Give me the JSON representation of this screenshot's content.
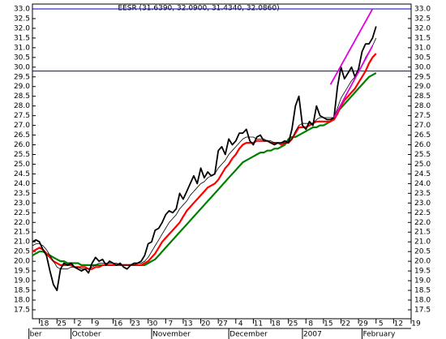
{
  "chart_data": {
    "type": "line",
    "title": "EESR (31.6390, 32.0900, 31.4340, 32.0860)",
    "x": [
      0,
      1,
      2,
      3,
      4,
      5,
      6,
      7,
      8,
      9,
      10,
      11,
      12,
      13,
      14,
      15,
      16,
      17,
      18,
      19,
      20,
      21,
      22,
      23,
      24,
      25,
      26,
      27,
      28,
      29,
      30,
      31,
      32,
      33,
      34,
      35,
      36,
      37,
      38,
      39,
      40,
      41,
      42,
      43,
      44,
      45,
      46,
      47,
      48,
      49,
      50,
      51,
      52,
      53,
      54,
      55,
      56,
      57,
      58,
      59,
      60,
      61,
      62,
      63,
      64,
      65,
      66,
      67,
      68,
      69,
      70,
      71,
      72,
      73,
      74,
      75,
      76,
      77,
      78,
      79,
      80,
      81,
      82,
      83,
      84,
      85,
      86,
      87,
      88,
      89,
      90,
      91,
      92,
      93,
      94,
      95,
      96,
      97,
      98
    ],
    "series": [
      {
        "color": "#008000",
        "width": 2.2,
        "values": [
          20.3,
          20.4,
          20.5,
          20.5,
          20.4,
          20.3,
          20.2,
          20.1,
          20.0,
          20.0,
          19.9,
          19.9,
          19.9,
          19.9,
          19.8,
          19.8,
          19.8,
          19.8,
          19.8,
          19.8,
          19.8,
          19.8,
          19.8,
          19.8,
          19.8,
          19.8,
          19.8,
          19.8,
          19.8,
          19.8,
          19.8,
          19.8,
          19.8,
          19.9,
          20.0,
          20.1,
          20.3,
          20.5,
          20.7,
          20.9,
          21.1,
          21.3,
          21.5,
          21.7,
          21.9,
          22.1,
          22.3,
          22.5,
          22.7,
          22.9,
          23.1,
          23.3,
          23.5,
          23.7,
          23.9,
          24.1,
          24.3,
          24.5,
          24.7,
          24.9,
          25.1,
          25.2,
          25.3,
          25.4,
          25.5,
          25.6,
          25.6,
          25.7,
          25.7,
          25.8,
          25.8,
          25.9,
          26.0,
          26.3,
          26.4,
          26.4,
          26.5,
          26.6,
          26.7,
          26.8,
          26.9,
          26.9,
          27.0,
          27.0,
          27.1,
          27.2,
          27.4,
          27.7,
          27.9,
          28.1,
          28.3,
          28.5,
          28.7,
          28.9,
          29.1,
          29.3,
          29.5,
          29.6,
          29.7
        ]
      },
      {
        "color": "#ff0000",
        "width": 2.2,
        "values": [
          20.5,
          20.6,
          20.7,
          20.6,
          20.4,
          20.2,
          20.0,
          19.9,
          19.8,
          19.8,
          19.8,
          19.8,
          19.7,
          19.7,
          19.7,
          19.7,
          19.6,
          19.6,
          19.7,
          19.7,
          19.8,
          19.8,
          19.8,
          19.8,
          19.8,
          19.8,
          19.8,
          19.8,
          19.8,
          19.8,
          19.8,
          19.8,
          19.9,
          20.0,
          20.2,
          20.4,
          20.7,
          21.0,
          21.2,
          21.4,
          21.6,
          21.8,
          22.0,
          22.3,
          22.6,
          22.8,
          23.0,
          23.2,
          23.4,
          23.6,
          23.8,
          23.9,
          24.0,
          24.2,
          24.5,
          24.8,
          25.0,
          25.3,
          25.5,
          25.8,
          26.0,
          26.1,
          26.1,
          26.1,
          26.2,
          26.2,
          26.2,
          26.2,
          26.1,
          26.1,
          26.1,
          26.0,
          26.1,
          26.1,
          26.3,
          26.6,
          26.9,
          26.9,
          26.9,
          27.0,
          27.1,
          27.2,
          27.2,
          27.2,
          27.2,
          27.2,
          27.3,
          27.6,
          28.0,
          28.3,
          28.5,
          28.7,
          28.9,
          29.2,
          29.5,
          29.8,
          30.2,
          30.5,
          30.7
        ]
      },
      {
        "color": "#000000",
        "width": 0.8,
        "values": [
          20.8,
          20.9,
          20.9,
          20.8,
          20.6,
          20.3,
          20.0,
          19.7,
          19.6,
          19.6,
          19.6,
          19.7,
          19.7,
          19.7,
          19.6,
          19.6,
          19.6,
          19.7,
          19.8,
          19.9,
          19.9,
          19.9,
          19.9,
          19.9,
          19.9,
          19.8,
          19.8,
          19.8,
          19.8,
          19.8,
          19.9,
          19.9,
          20.0,
          20.2,
          20.5,
          20.8,
          21.1,
          21.4,
          21.7,
          22.0,
          22.2,
          22.4,
          22.7,
          22.9,
          23.1,
          23.4,
          23.6,
          23.8,
          24.0,
          24.1,
          24.3,
          24.4,
          24.5,
          24.8,
          25.0,
          25.2,
          25.5,
          25.7,
          25.9,
          26.1,
          26.3,
          26.4,
          26.4,
          26.4,
          26.3,
          26.3,
          26.3,
          26.2,
          26.2,
          26.1,
          26.1,
          26.1,
          26.1,
          26.1,
          26.3,
          26.7,
          27.0,
          27.1,
          27.1,
          27.1,
          27.1,
          27.3,
          27.4,
          27.4,
          27.4,
          27.4,
          27.4,
          27.9,
          28.4,
          28.7,
          29.0,
          29.3,
          29.5,
          29.7,
          30.1,
          30.5,
          30.8,
          31.1,
          31.5
        ]
      },
      {
        "color": "#000000",
        "width": 1.8,
        "values": [
          21.0,
          21.1,
          21.0,
          20.6,
          20.3,
          19.5,
          18.8,
          18.5,
          19.6,
          19.9,
          19.8,
          19.9,
          19.7,
          19.6,
          19.5,
          19.6,
          19.4,
          19.9,
          20.2,
          20.0,
          20.1,
          19.8,
          20.0,
          19.9,
          19.8,
          19.9,
          19.7,
          19.6,
          19.8,
          19.9,
          19.9,
          20.0,
          20.3,
          20.9,
          21.0,
          21.6,
          21.7,
          22.0,
          22.4,
          22.6,
          22.5,
          22.7,
          23.5,
          23.2,
          23.6,
          24.0,
          24.4,
          24.0,
          24.8,
          24.3,
          24.6,
          24.4,
          24.5,
          25.7,
          25.9,
          25.5,
          26.3,
          26.0,
          26.2,
          26.6,
          26.6,
          26.8,
          26.2,
          26.0,
          26.4,
          26.5,
          26.2,
          26.2,
          26.1,
          26.0,
          26.1,
          26.1,
          26.2,
          26.1,
          26.8,
          28.0,
          28.5,
          27.0,
          26.8,
          27.2,
          27.0,
          28.0,
          27.5,
          27.4,
          27.3,
          27.3,
          27.4,
          29.0,
          30.0,
          29.4,
          29.7,
          30.0,
          29.5,
          29.9,
          30.8,
          31.2,
          31.2,
          31.5,
          32.1
        ]
      }
    ],
    "trendlines": [
      {
        "color": "#e000e0",
        "x": [
          85,
          97
        ],
        "values": [
          29.1,
          33.0
        ]
      },
      {
        "color": "#e000e0",
        "x": [
          86,
          97
        ],
        "values": [
          27.4,
          31.1
        ]
      }
    ],
    "hlines": {
      "color": "#0000c0",
      "values": [
        33.0,
        29.8
      ]
    },
    "xlim": [
      0,
      108
    ],
    "ylim": [
      17.04,
      33.25
    ],
    "xticks": [
      {
        "value": 2,
        "label": "18"
      },
      {
        "value": 7,
        "label": "25"
      },
      {
        "value": 12,
        "label": "2"
      },
      {
        "value": 17,
        "label": "9"
      },
      {
        "value": 23,
        "label": "16"
      },
      {
        "value": 28,
        "label": "23"
      },
      {
        "value": 33,
        "label": "30"
      },
      {
        "value": 38,
        "label": "7"
      },
      {
        "value": 43,
        "label": "13"
      },
      {
        "value": 48,
        "label": "20"
      },
      {
        "value": 53,
        "label": "27"
      },
      {
        "value": 58,
        "label": "4"
      },
      {
        "value": 63,
        "label": "11"
      },
      {
        "value": 68,
        "label": "18"
      },
      {
        "value": 73,
        "label": "25"
      },
      {
        "value": 78,
        "label": "8"
      },
      {
        "value": 83,
        "label": "15"
      },
      {
        "value": 88,
        "label": "22"
      },
      {
        "value": 93,
        "label": "29"
      },
      {
        "value": 98,
        "label": "5"
      },
      {
        "value": 103,
        "label": "12"
      },
      {
        "value": 108,
        "label": "19"
      }
    ],
    "month_labels": [
      {
        "value": -1,
        "label": "ber"
      },
      {
        "value": 11,
        "label": "October"
      },
      {
        "value": 34,
        "label": "November"
      },
      {
        "value": 56,
        "label": "December"
      },
      {
        "value": 77,
        "label": "2007"
      },
      {
        "value": 94,
        "label": "February"
      }
    ],
    "yticks": [
      {
        "value": 17.5,
        "label": "17.5"
      },
      {
        "value": 18,
        "label": "18.0"
      },
      {
        "value": 18.5,
        "label": "18.5"
      },
      {
        "value": 19,
        "label": "19.0"
      },
      {
        "value": 19.5,
        "label": "19.5"
      },
      {
        "value": 20,
        "label": "20.0"
      },
      {
        "value": 20.5,
        "label": "20.5"
      },
      {
        "value": 21,
        "label": "21.0"
      },
      {
        "value": 21.5,
        "label": "21.5"
      },
      {
        "value": 22,
        "label": "22.0"
      },
      {
        "value": 22.5,
        "label": "22.5"
      },
      {
        "value": 23,
        "label": "23.0"
      },
      {
        "value": 23.5,
        "label": "23.5"
      },
      {
        "value": 24,
        "label": "24.0"
      },
      {
        "value": 24.5,
        "label": "24.5"
      },
      {
        "value": 25,
        "label": "25.0"
      },
      {
        "value": 25.5,
        "label": "25.5"
      },
      {
        "value": 26,
        "label": "26.0"
      },
      {
        "value": 26.5,
        "label": "26.5"
      },
      {
        "value": 27,
        "label": "27.0"
      },
      {
        "value": 27.5,
        "label": "27.5"
      },
      {
        "value": 28,
        "label": "28.0"
      },
      {
        "value": 28.5,
        "label": "28.5"
      },
      {
        "value": 29,
        "label": "29.0"
      },
      {
        "value": 29.5,
        "label": "29.5"
      },
      {
        "value": 30,
        "label": "30.0"
      },
      {
        "value": 30.5,
        "label": "30.5"
      },
      {
        "value": 31,
        "label": "31.0"
      },
      {
        "value": 31.5,
        "label": "31.5"
      },
      {
        "value": 32,
        "label": "32.0"
      },
      {
        "value": 32.5,
        "label": "32.5"
      },
      {
        "value": 33,
        "label": "33.0"
      }
    ]
  }
}
